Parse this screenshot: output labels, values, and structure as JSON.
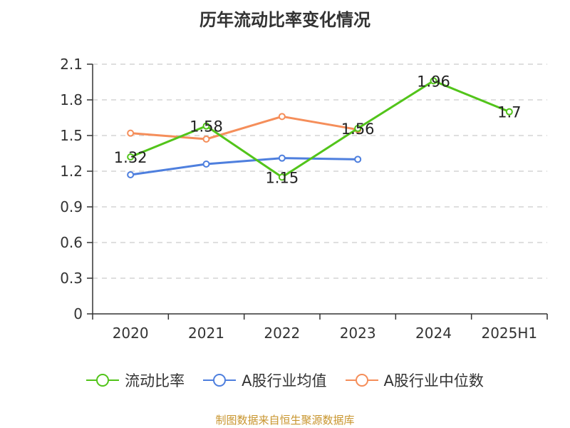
{
  "chart_title": "历年流动比率变化情况",
  "source_note": "制图数据来自恒生聚源数据库",
  "chart_data": {
    "type": "line",
    "title": "历年流动比率变化情况",
    "categories": [
      "2020",
      "2021",
      "2022",
      "2023",
      "2024",
      "2025H1"
    ],
    "ylim": [
      0,
      2.1
    ],
    "yticks": [
      "0",
      "0.3",
      "0.6",
      "0.9",
      "1.2",
      "1.5",
      "1.8",
      "2.1"
    ],
    "grid": true,
    "legend_position": "bottom",
    "series": [
      {
        "name": "流动比率",
        "color": "#52c41a",
        "values": [
          1.32,
          1.58,
          1.15,
          1.56,
          1.96,
          1.7
        ],
        "labels": [
          "1.32",
          "1.58",
          "1.15",
          "1.56",
          "1.96",
          "1.7"
        ]
      },
      {
        "name": "A股行业均值",
        "color": "#4e7fde",
        "values": [
          1.17,
          1.26,
          1.31,
          1.3,
          null,
          null
        ]
      },
      {
        "name": "A股行业中位数",
        "color": "#f58e5a",
        "values": [
          1.52,
          1.47,
          1.66,
          1.55,
          null,
          null
        ]
      }
    ]
  }
}
